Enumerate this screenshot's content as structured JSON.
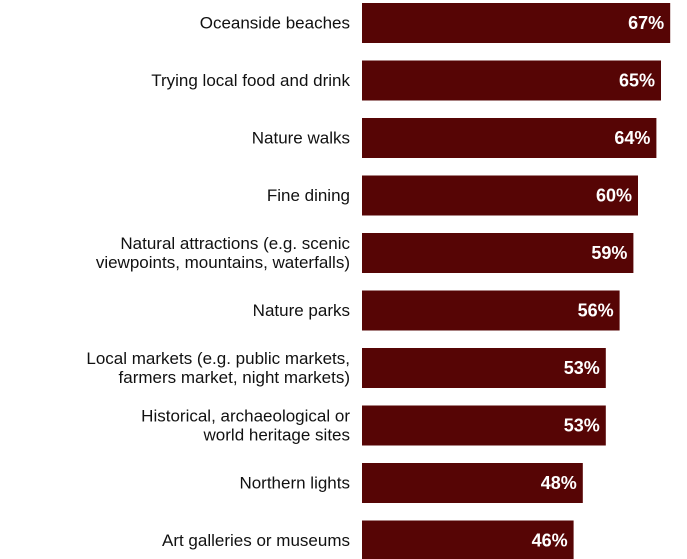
{
  "chart_data": {
    "type": "bar",
    "orientation": "horizontal",
    "categories": [
      [
        "Oceanside beaches"
      ],
      [
        "Trying local food and drink"
      ],
      [
        "Nature walks"
      ],
      [
        "Fine dining"
      ],
      [
        "Natural attractions (e.g. scenic",
        "viewpoints, mountains, waterfalls)"
      ],
      [
        "Nature parks"
      ],
      [
        "Local markets (e.g. public markets,",
        "farmers market, night markets)"
      ],
      [
        "Historical, archaeological or",
        "world heritage sites"
      ],
      [
        "Northern lights"
      ],
      [
        "Art galleries or museums"
      ]
    ],
    "values": [
      67,
      65,
      64,
      60,
      59,
      56,
      53,
      53,
      48,
      46
    ],
    "value_labels": [
      "67%",
      "65%",
      "64%",
      "60%",
      "59%",
      "56%",
      "53%",
      "53%",
      "48%",
      "46%"
    ],
    "xlim": [
      0,
      100
    ],
    "grid": false,
    "legend": "none",
    "colors": {
      "bar": "#560505",
      "value_text": "#ffffff",
      "category_text": "#111111"
    }
  }
}
